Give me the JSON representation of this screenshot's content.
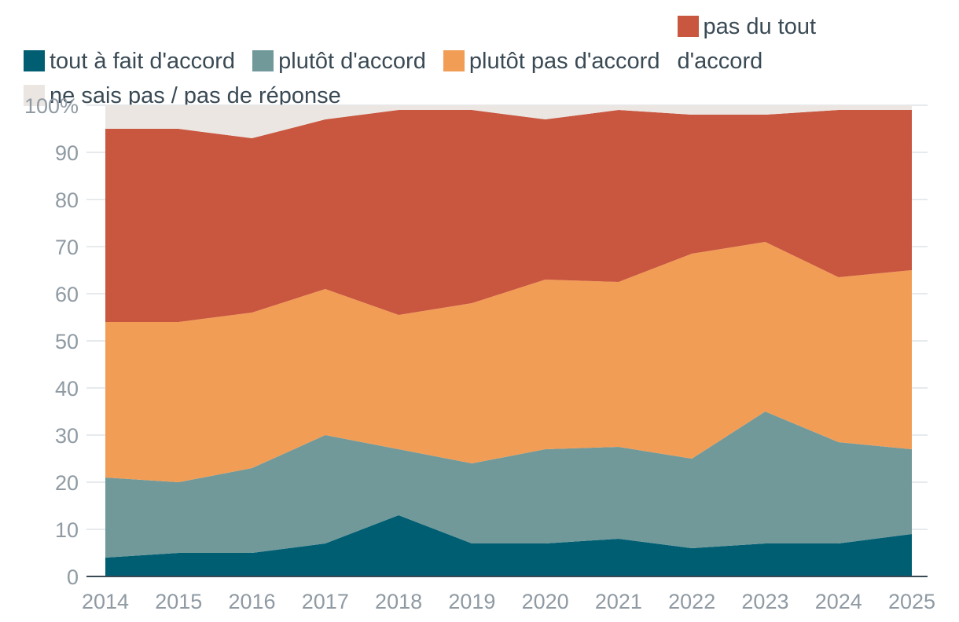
{
  "chart_data": {
    "type": "area",
    "stacked": true,
    "x": [
      "2014",
      "2015",
      "2016",
      "2017",
      "2018",
      "2019",
      "2020",
      "2021",
      "2022",
      "2023",
      "2024",
      "2025"
    ],
    "ylim": [
      0,
      100
    ],
    "yticks": [
      "0",
      "10",
      "20",
      "30",
      "40",
      "50",
      "60",
      "70",
      "80",
      "90",
      "100%"
    ],
    "grid": true,
    "legend_position": "top",
    "series": [
      {
        "name": "tout à fait d'accord",
        "color": "#005e73",
        "values": [
          4,
          5,
          5,
          7,
          13,
          7,
          7,
          8,
          6,
          7,
          7,
          9
        ]
      },
      {
        "name": "plutôt d'accord",
        "color": "#71999a",
        "values": [
          17,
          15,
          18,
          23,
          14,
          17,
          20,
          19.5,
          19,
          28,
          21.5,
          18
        ]
      },
      {
        "name": "plutôt pas d'accord",
        "color": "#f29d56",
        "values": [
          33,
          34,
          33,
          31,
          28.5,
          34,
          36,
          35,
          43.5,
          36,
          35,
          38
        ]
      },
      {
        "name": "pas du tout",
        "name_part2": "d'accord",
        "color": "#c9563f",
        "values": [
          41,
          41,
          37,
          36,
          43.5,
          41,
          34,
          36.5,
          29.5,
          27,
          35.5,
          34
        ]
      },
      {
        "name": "ne sais pas / pas de réponse",
        "color": "#ebe6e2",
        "values": [
          5,
          5,
          7,
          3,
          1,
          1,
          3,
          1,
          2,
          2,
          1,
          1
        ]
      }
    ]
  }
}
